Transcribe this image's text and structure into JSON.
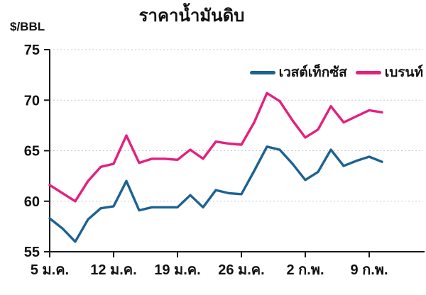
{
  "title": "ราคาน้ำมันดิบ",
  "y_unit_label": "$/BBL",
  "chart_data": {
    "type": "line",
    "title": "ราคาน้ำมันดิบ",
    "ylabel": "$/BBL",
    "xlabel": "",
    "ylim": [
      55,
      75
    ],
    "y_ticks": [
      55,
      60,
      65,
      70,
      75
    ],
    "grid": "horizontal-dashed",
    "grid_color": "#c9c9c9",
    "axis_color": "#1a1a1a",
    "legend_position": "top-right",
    "x_tick_labels": [
      "5 ม.ค.",
      "12 ม.ค.",
      "19 ม.ค.",
      "26 ม.ค.",
      "2 ก.พ.",
      "9 ก.พ."
    ],
    "x_tick_indices": [
      0,
      5,
      10,
      15,
      20,
      25
    ],
    "series": [
      {
        "name": "เวสต์เท็กซัส",
        "color": "#1c6292",
        "values": [
          58.3,
          57.3,
          56.0,
          58.2,
          59.3,
          59.5,
          62.0,
          59.1,
          59.4,
          59.4,
          59.4,
          60.6,
          59.4,
          61.1,
          60.8,
          60.7,
          63.0,
          65.4,
          65.1,
          63.7,
          62.1,
          62.9,
          65.1,
          63.5,
          64.0,
          64.4,
          63.9
        ]
      },
      {
        "name": "เบรนท์",
        "color": "#e3207f",
        "values": [
          61.6,
          60.8,
          60.0,
          62.0,
          63.4,
          63.7,
          66.5,
          63.8,
          64.2,
          64.2,
          64.1,
          65.1,
          64.2,
          65.9,
          65.7,
          65.6,
          67.8,
          70.7,
          69.9,
          68.0,
          66.3,
          67.1,
          69.4,
          67.8,
          68.4,
          69.0,
          68.8
        ]
      }
    ]
  }
}
